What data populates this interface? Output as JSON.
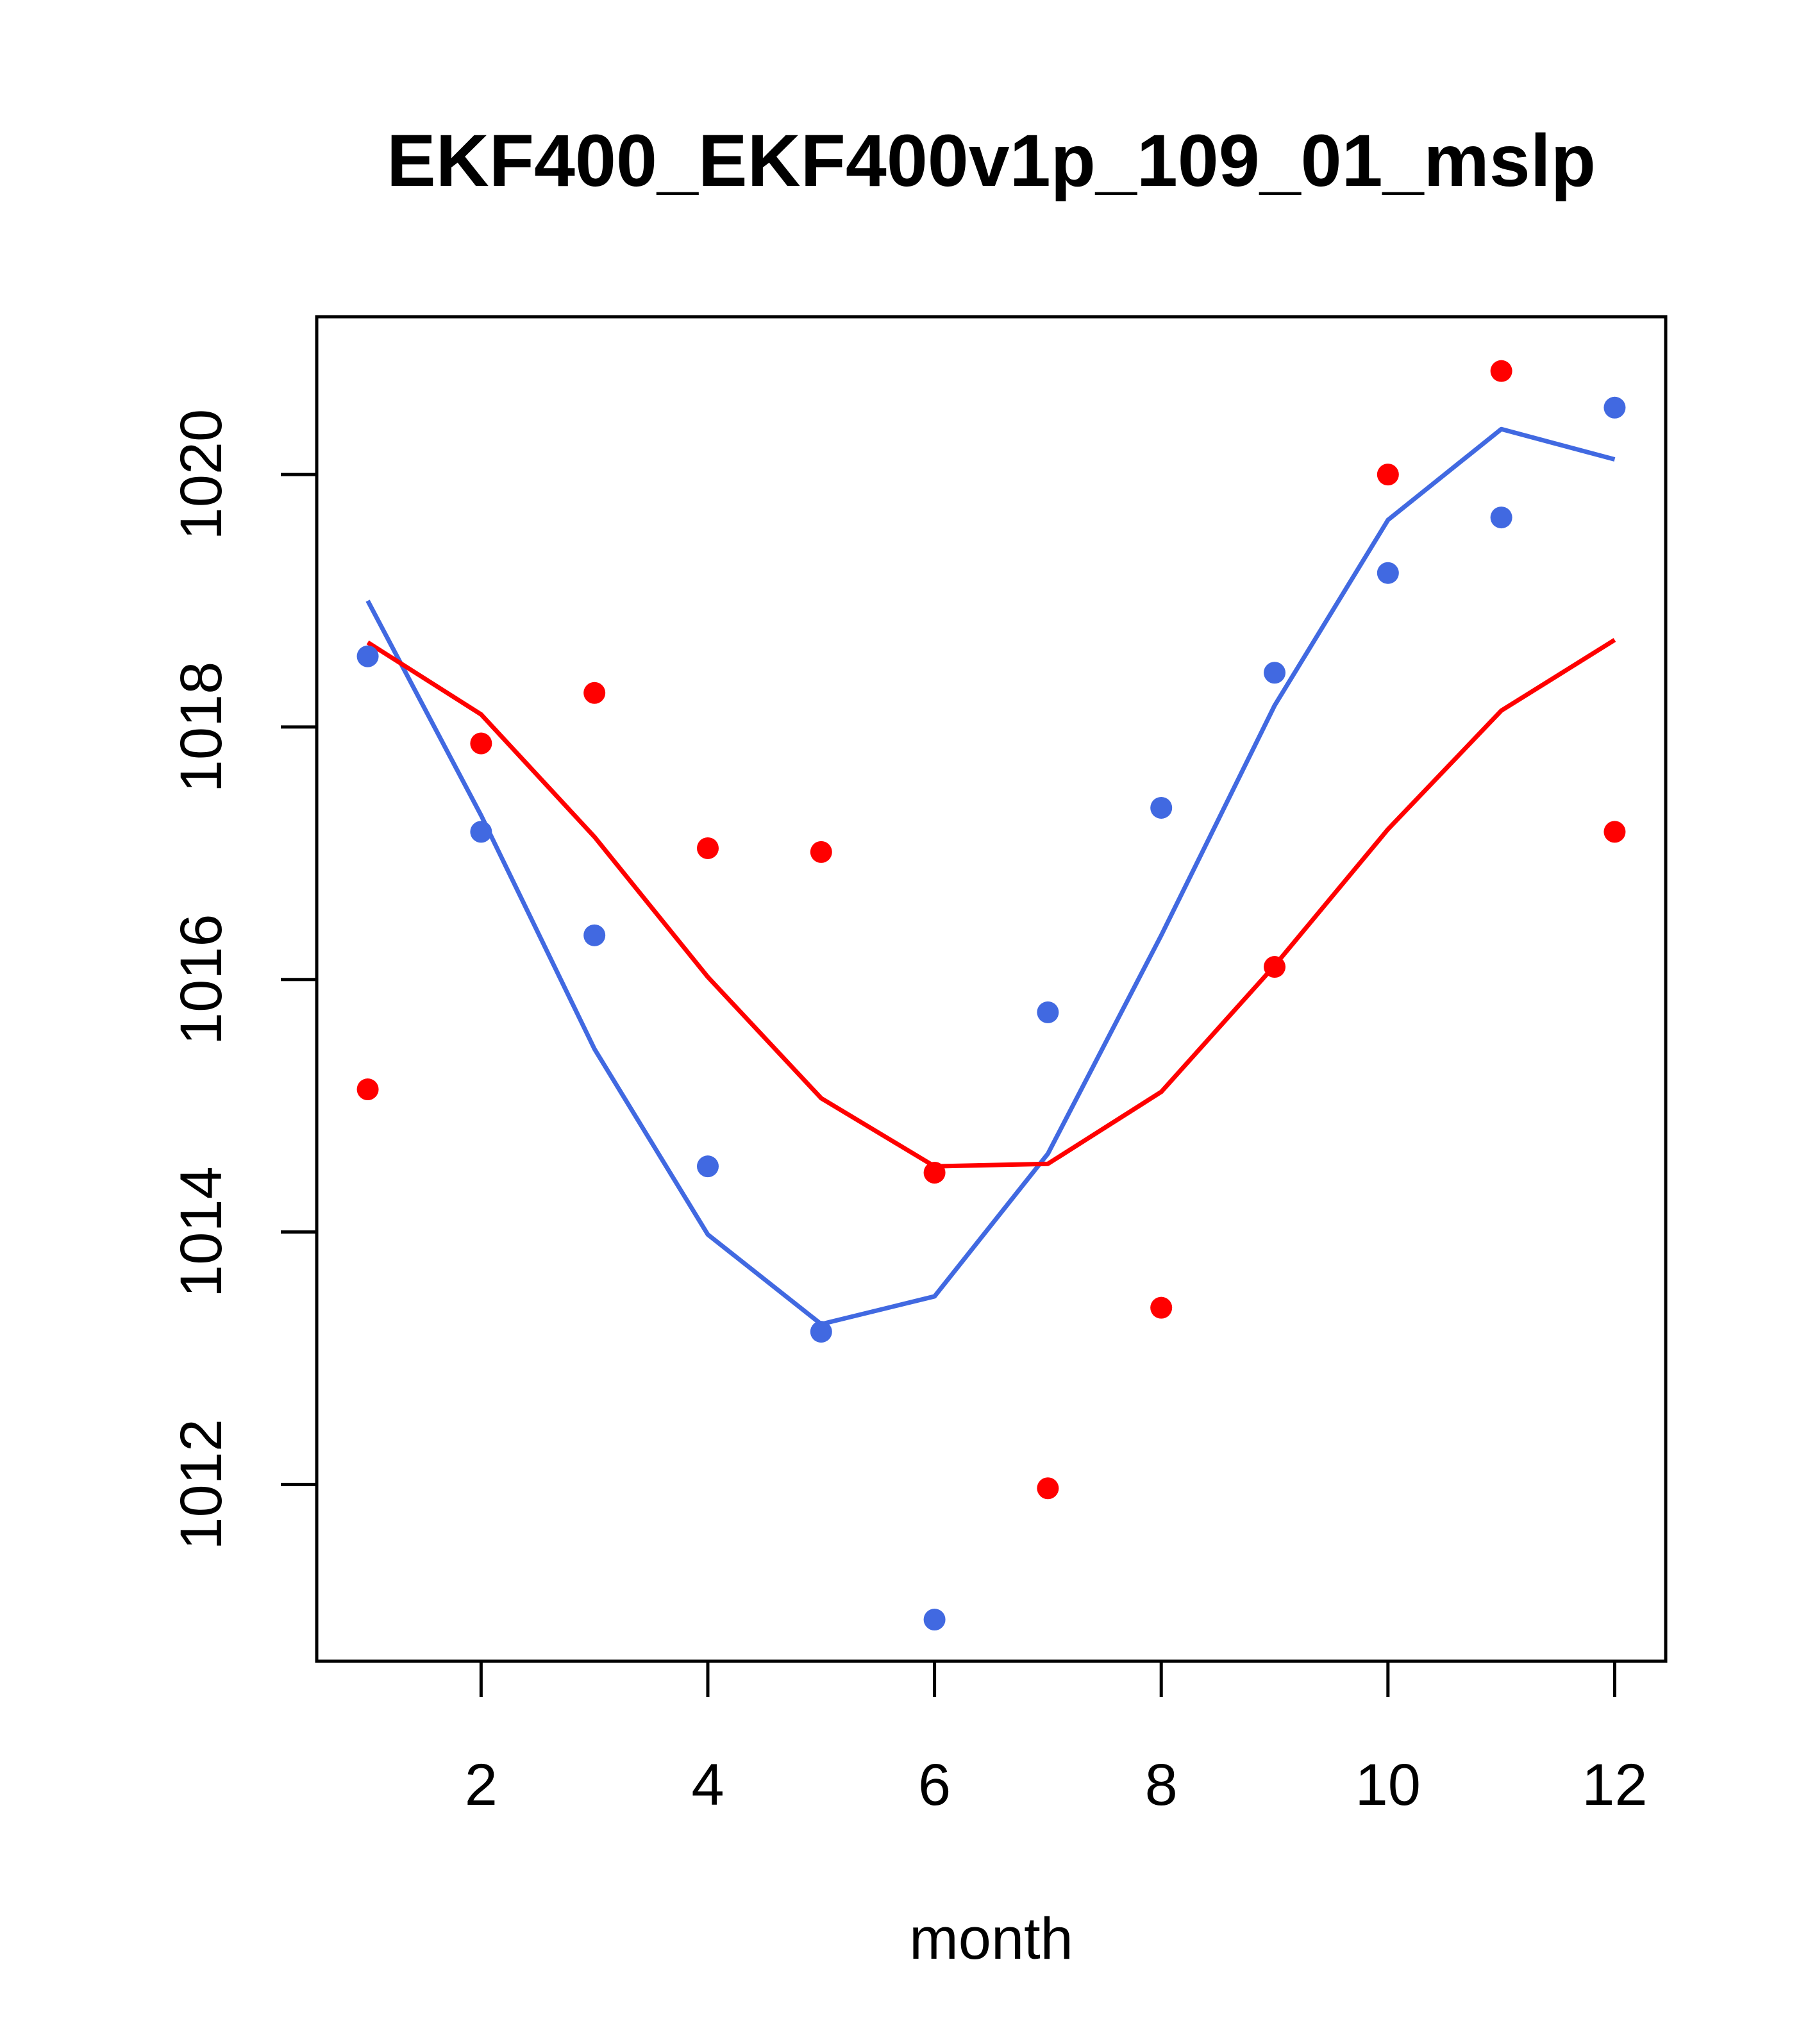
{
  "chart_data": {
    "type": "scatter",
    "title": "EKF400_EKF400v1p_109_01_mslp",
    "xlabel": "month",
    "ylabel": "",
    "xlim": [
      0.55,
      12.45
    ],
    "ylim": [
      1010.6,
      1021.25
    ],
    "x_ticks": [
      2,
      4,
      6,
      8,
      10,
      12
    ],
    "x_tick_labels": [
      "2",
      "4",
      "6",
      "8",
      "10",
      "12"
    ],
    "y_ticks": [
      1012,
      1014,
      1016,
      1018,
      1020
    ],
    "y_tick_labels": [
      "1012",
      "1014",
      "1016",
      "1018",
      "1020"
    ],
    "grid": false,
    "legend": "none",
    "series": [
      {
        "name": "blue points",
        "kind": "points",
        "color": "#4169E1",
        "x": [
          1,
          2,
          3,
          4,
          5,
          6,
          7,
          8,
          9,
          10,
          11,
          12
        ],
        "y": [
          1018.56,
          1017.17,
          1016.35,
          1014.52,
          1013.21,
          1010.93,
          1015.74,
          1017.36,
          1018.43,
          1019.22,
          1019.66,
          1020.53
        ]
      },
      {
        "name": "red points",
        "kind": "points",
        "color": "#FF0000",
        "x": [
          1,
          2,
          3,
          4,
          5,
          6,
          7,
          8,
          9,
          10,
          11,
          12
        ],
        "y": [
          1015.13,
          1017.87,
          1018.27,
          1017.04,
          1017.01,
          1014.47,
          1011.97,
          1013.4,
          1016.1,
          1020.0,
          1020.82,
          1017.17
        ]
      },
      {
        "name": "blue line",
        "kind": "line",
        "color": "#4169E1",
        "x": [
          1,
          2,
          3,
          4,
          5,
          6,
          7,
          8,
          9,
          10,
          11,
          12
        ],
        "y": [
          1019.0,
          1017.3,
          1015.45,
          1013.98,
          1013.27,
          1013.49,
          1014.62,
          1016.35,
          1018.17,
          1019.64,
          1020.36,
          1020.12
        ]
      },
      {
        "name": "red line",
        "kind": "line",
        "color": "#FF0000",
        "x": [
          1,
          2,
          3,
          4,
          5,
          6,
          7,
          8,
          9,
          10,
          11,
          12
        ],
        "y": [
          1018.67,
          1018.1,
          1017.13,
          1016.02,
          1015.06,
          1014.52,
          1014.54,
          1015.11,
          1016.11,
          1017.19,
          1018.13,
          1018.69
        ]
      }
    ]
  }
}
